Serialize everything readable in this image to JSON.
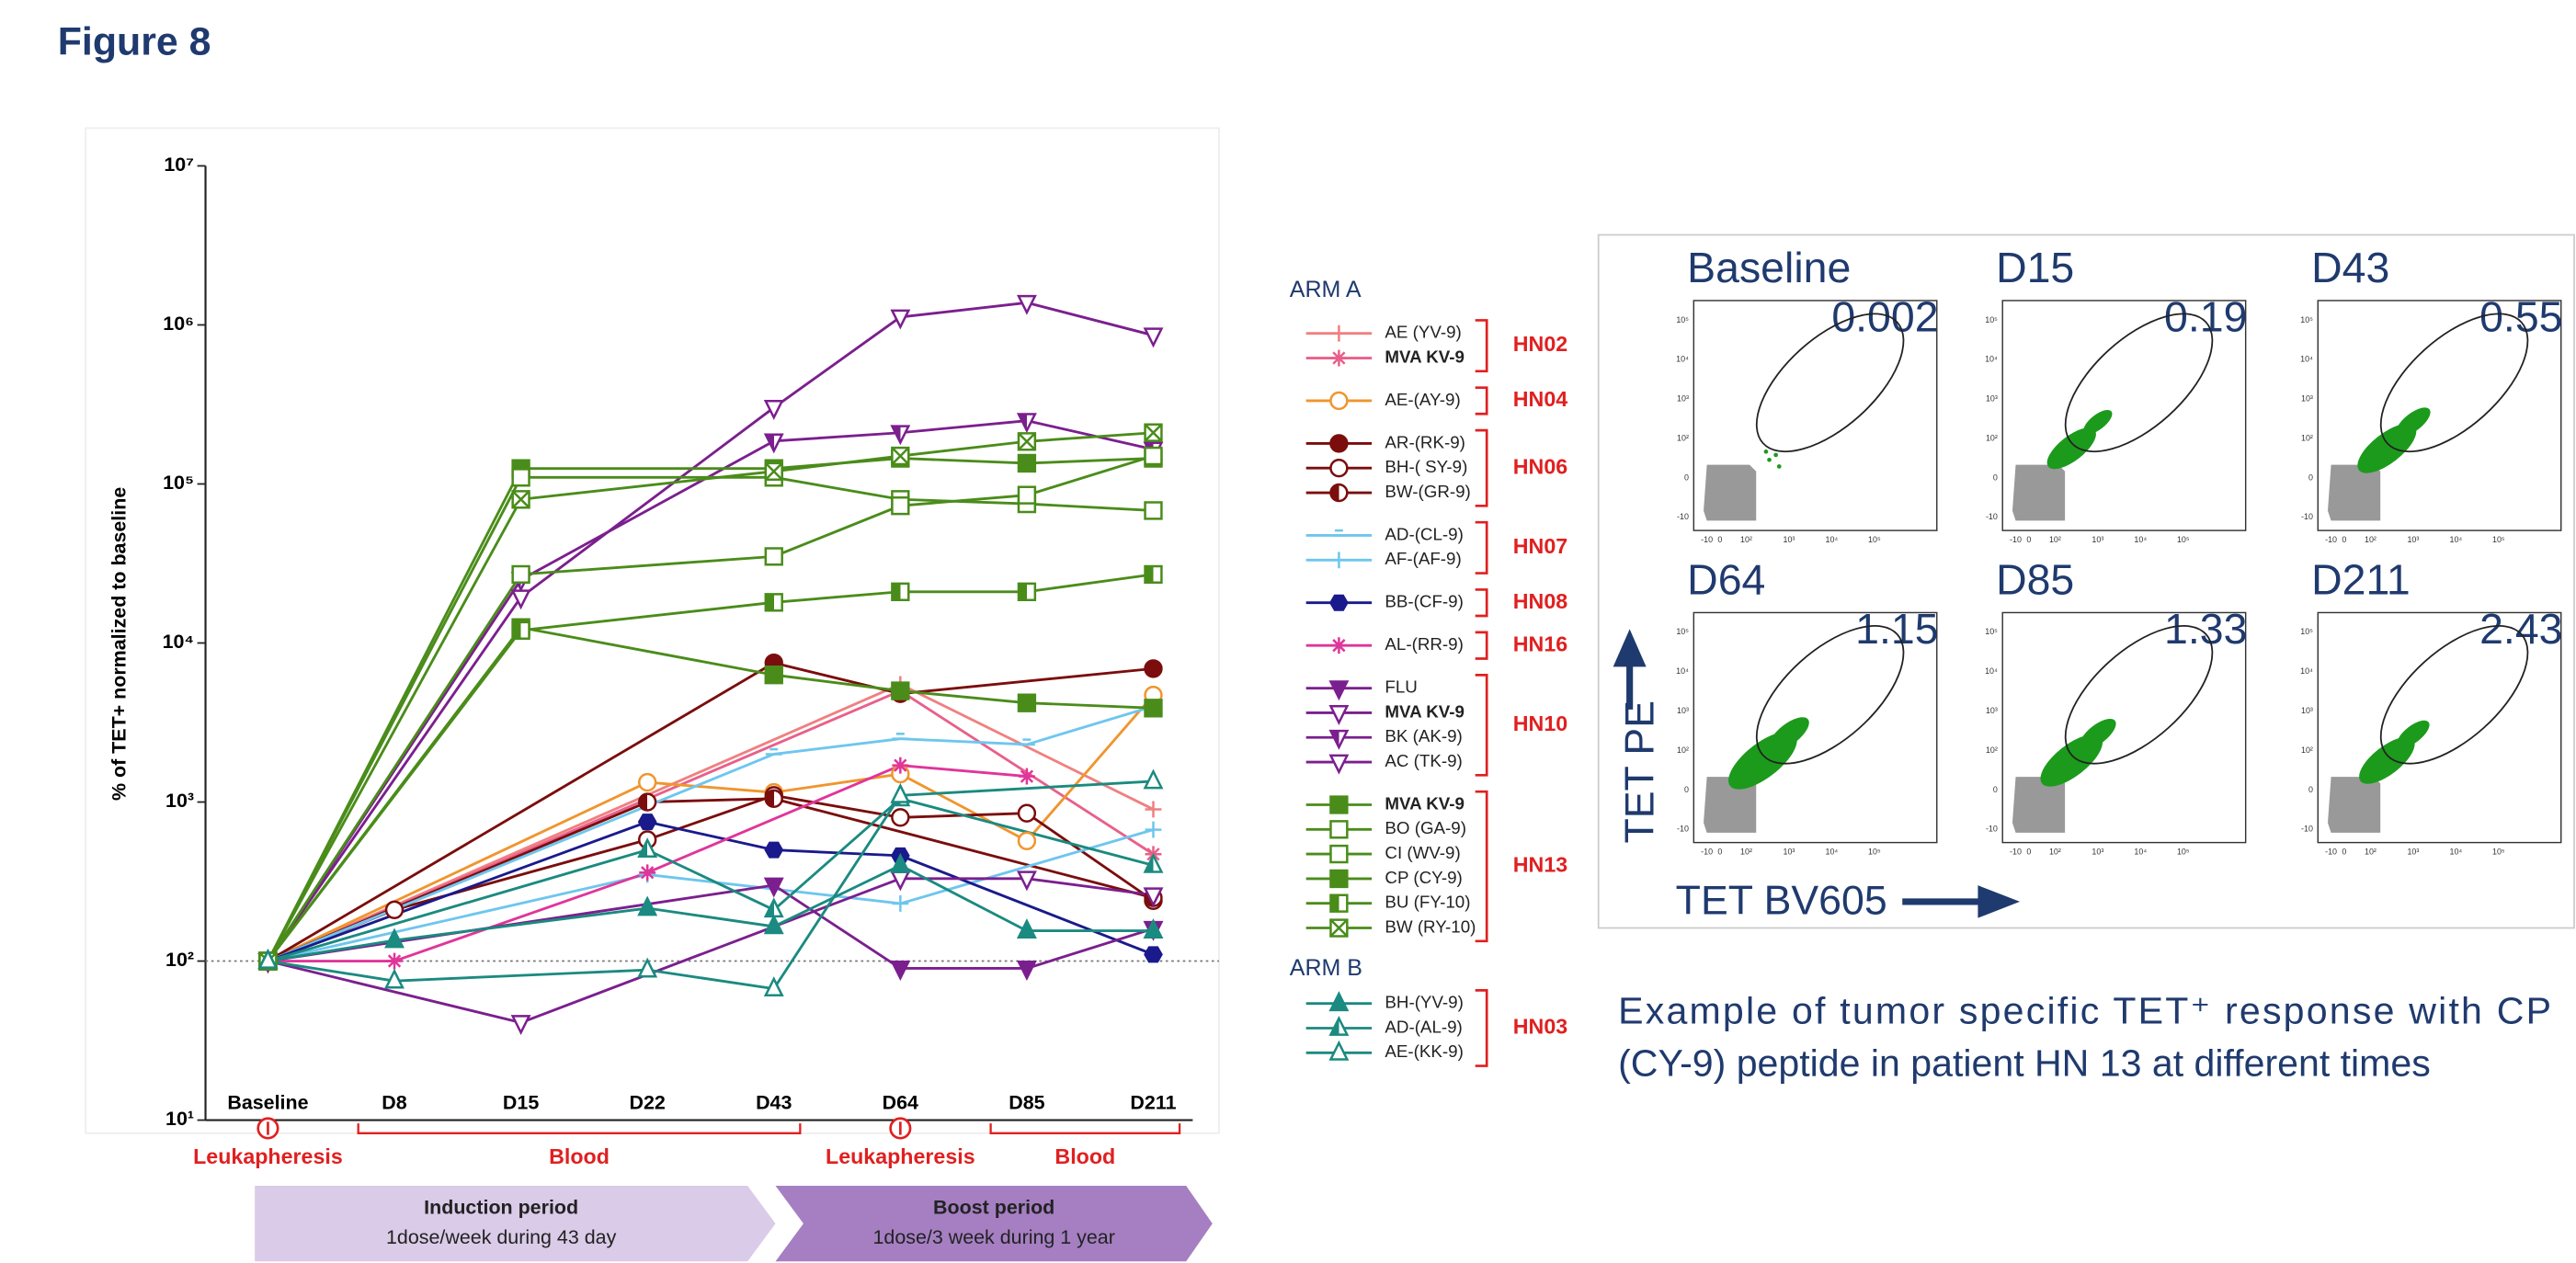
{
  "title": "Figure 8",
  "chart_data": {
    "type": "line",
    "y_label": "% of TET+ normalized to baseline",
    "log_y": true,
    "ylim": [
      10,
      10000000
    ],
    "yticks": [
      {
        "value": 10,
        "label": "10¹"
      },
      {
        "value": 100,
        "label": "10²"
      },
      {
        "value": 1000,
        "label": "10³"
      },
      {
        "value": 10000,
        "label": "10⁴"
      },
      {
        "value": 100000,
        "label": "10⁵"
      },
      {
        "value": 1000000,
        "label": "10⁶"
      },
      {
        "value": 10000000,
        "label": "10⁷"
      }
    ],
    "reference_line": 100,
    "categories": [
      "Baseline",
      "D8",
      "D15",
      "D22",
      "D43",
      "D64",
      "D85",
      "D211"
    ],
    "series": [
      {
        "name": "AE (YV-9)",
        "group": "HN02",
        "arm": "ARM A",
        "color": "#f08080",
        "marker": "plus",
        "fill": "filled",
        "values": [
          100,
          null,
          null,
          null,
          null,
          5500,
          null,
          900
        ]
      },
      {
        "name": "MVA KV-9",
        "bold": true,
        "group": "HN02",
        "arm": "ARM A",
        "color": "#e8608a",
        "marker": "star",
        "fill": "filled",
        "values": [
          100,
          null,
          null,
          null,
          null,
          5000,
          null,
          470
        ]
      },
      {
        "name": "AE-(AY-9)",
        "group": "HN04",
        "arm": "ARM A",
        "color": "#f0952e",
        "marker": "circle",
        "fill": "open",
        "values": [
          100,
          null,
          null,
          1330,
          1150,
          1500,
          570,
          4700
        ]
      },
      {
        "name": "AR-(RK-9)",
        "group": "HN06",
        "arm": "ARM A",
        "color": "#7b0d0d",
        "marker": "circle",
        "fill": "filled",
        "values": [
          100,
          null,
          null,
          null,
          7500,
          4800,
          null,
          6900
        ]
      },
      {
        "name": "BH-( SY-9)",
        "group": "HN06",
        "arm": "ARM A",
        "color": "#7b0d0d",
        "marker": "circle",
        "fill": "open",
        "values": [
          100,
          210,
          null,
          580,
          1100,
          800,
          850,
          240
        ]
      },
      {
        "name": "BW-(GR-9)",
        "group": "HN06",
        "arm": "ARM A",
        "color": "#7b0d0d",
        "marker": "circle",
        "fill": "half",
        "values": [
          100,
          null,
          null,
          1000,
          1050,
          null,
          null,
          250
        ]
      },
      {
        "name": "AD-(CL-9)",
        "group": "HN07",
        "arm": "ARM A",
        "color": "#6ec6ee",
        "marker": "dash",
        "fill": "filled",
        "values": [
          100,
          null,
          null,
          null,
          2000,
          2500,
          2300,
          4000
        ]
      },
      {
        "name": "AF-(AF-9)",
        "group": "HN07",
        "arm": "ARM A",
        "color": "#6ec6ee",
        "marker": "plus",
        "fill": "filled",
        "values": [
          100,
          null,
          null,
          350,
          null,
          230,
          null,
          670
        ]
      },
      {
        "name": "BB-(CF-9)",
        "group": "HN08",
        "arm": "ARM A",
        "color": "#1a1a8c",
        "marker": "hexagon",
        "fill": "filled",
        "values": [
          100,
          null,
          null,
          750,
          500,
          460,
          null,
          110
        ]
      },
      {
        "name": "AL-(RR-9)",
        "group": "HN16",
        "arm": "ARM A",
        "color": "#e0359a",
        "marker": "star",
        "fill": "filled",
        "values": [
          100,
          100,
          null,
          360,
          null,
          1700,
          1450,
          null
        ]
      },
      {
        "name": "FLU",
        "group": "HN10",
        "arm": "ARM A",
        "color": "#7b1f8e",
        "marker": "triangle-down",
        "fill": "filled",
        "values": [
          100,
          null,
          null,
          null,
          300,
          90,
          90,
          160
        ]
      },
      {
        "name": "MVA KV-9",
        "bold": true,
        "group": "HN10",
        "arm": "ARM A",
        "color": "#7b1f8e",
        "marker": "triangle-down",
        "fill": "open",
        "values": [
          100,
          null,
          19400,
          null,
          302000,
          1120000,
          1380000,
          860000
        ]
      },
      {
        "name": "BK (AK-9)",
        "group": "HN10",
        "arm": "ARM A",
        "color": "#7b1f8e",
        "marker": "triangle-down",
        "fill": "half",
        "values": [
          100,
          null,
          25000,
          null,
          186000,
          210000,
          250000,
          165000
        ]
      },
      {
        "name": "AC (TK-9)",
        "group": "HN10",
        "arm": "ARM A",
        "color": "#7b1f8e",
        "marker": "triangle-down",
        "fill": "open",
        "values": [
          100,
          null,
          41,
          null,
          null,
          330,
          330,
          260
        ]
      },
      {
        "name": "MVA KV-9",
        "bold": true,
        "group": "HN13",
        "arm": "ARM A",
        "color": "#4a8c1a",
        "marker": "square",
        "fill": "filled",
        "values": [
          100,
          null,
          125000,
          null,
          125000,
          145000,
          135000,
          145000
        ]
      },
      {
        "name": "BO (GA-9)",
        "group": "HN13",
        "arm": "ARM A",
        "color": "#4a8c1a",
        "marker": "square",
        "fill": "open",
        "values": [
          100,
          null,
          110000,
          null,
          110000,
          80000,
          75000,
          68000
        ]
      },
      {
        "name": "CI (WV-9)",
        "group": "HN13",
        "arm": "ARM A",
        "color": "#4a8c1a",
        "marker": "square",
        "fill": "open",
        "values": [
          100,
          null,
          27000,
          null,
          35000,
          73000,
          85000,
          150000
        ]
      },
      {
        "name": "CP (CY-9)",
        "group": "HN13",
        "arm": "ARM A",
        "color": "#4a8c1a",
        "marker": "square",
        "fill": "filled",
        "values": [
          100,
          null,
          12500,
          null,
          6300,
          5000,
          4200,
          3900
        ]
      },
      {
        "name": "BU (FY-10)",
        "group": "HN13",
        "arm": "ARM A",
        "color": "#4a8c1a",
        "marker": "square",
        "fill": "half",
        "values": [
          100,
          null,
          12000,
          null,
          18000,
          21000,
          21000,
          27000
        ]
      },
      {
        "name": "BW (RY-10)",
        "group": "HN13",
        "arm": "ARM A",
        "color": "#4a8c1a",
        "marker": "square",
        "fill": "cross",
        "values": [
          100,
          null,
          80000,
          null,
          120000,
          150000,
          185000,
          210000
        ]
      },
      {
        "name": "BH-(YV-9)",
        "group": "HN03",
        "arm": "ARM B",
        "color": "#1b8a80",
        "marker": "triangle-up",
        "fill": "filled",
        "values": [
          100,
          135,
          null,
          215,
          165,
          400,
          155,
          155
        ]
      },
      {
        "name": "AD-(AL-9)",
        "group": "HN03",
        "arm": "ARM B",
        "color": "#1b8a80",
        "marker": "triangle-up",
        "fill": "half",
        "values": [
          100,
          null,
          null,
          500,
          210,
          1050,
          null,
          400
        ]
      },
      {
        "name": "AE-(KK-9)",
        "group": "HN03",
        "arm": "ARM B",
        "color": "#1b8a80",
        "marker": "triangle-up",
        "fill": "open",
        "values": [
          100,
          75,
          null,
          88,
          67,
          1100,
          null,
          1350
        ]
      }
    ],
    "events": [
      {
        "label": "Leukapheresis",
        "category": "Baseline"
      },
      {
        "label": "Blood",
        "from": "D8",
        "to": "D43"
      },
      {
        "label": "Leukapheresis",
        "category": "D64"
      },
      {
        "label": "Blood",
        "from": "D85",
        "to": "D211"
      }
    ],
    "periods": [
      {
        "title": "Induction period",
        "subtitle": "1dose/week during 43 day",
        "color": "#dacbe8"
      },
      {
        "title": "Boost period",
        "subtitle": "1dose/3 week during 1 year",
        "color": "#a57fc2"
      }
    ]
  },
  "flow": {
    "x_label": "TET BV605",
    "y_label": "TET PE",
    "xticks": [
      "-10",
      "0",
      "10²",
      "10³",
      "10⁴",
      "10⁵"
    ],
    "yticks": [
      "10⁵",
      "10⁴",
      "10³",
      "10²",
      "0",
      "-10"
    ],
    "panels": [
      {
        "label": "Baseline",
        "value": 0.002
      },
      {
        "label": "D15",
        "value": 0.19
      },
      {
        "label": "D43",
        "value": 0.55
      },
      {
        "label": "D64",
        "value": 1.15
      },
      {
        "label": "D85",
        "value": 1.33
      },
      {
        "label": "D211",
        "value": 2.43
      }
    ]
  },
  "caption": [
    "Example of tumor specific TET⁺ response with CP",
    "(CY-9) peptide in patient HN 13 at different times"
  ]
}
